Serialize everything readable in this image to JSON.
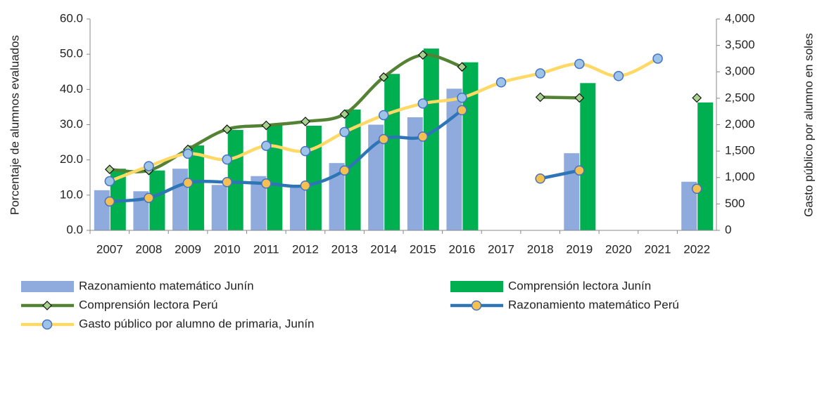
{
  "chart_data": {
    "type": "combo",
    "categories": [
      "2007",
      "2008",
      "2009",
      "2010",
      "2011",
      "2012",
      "2013",
      "2014",
      "2015",
      "2016",
      "2017",
      "2018",
      "2019",
      "2020",
      "2021",
      "2022"
    ],
    "ylabel": "Porcentaje de alumnos evaluados",
    "y2label": "Gasto público por alumno en soles",
    "ylim": [
      0,
      60
    ],
    "yticks": [
      {
        "value": 0,
        "label": "0.0"
      },
      {
        "value": 10,
        "label": "10.0"
      },
      {
        "value": 20,
        "label": "20.0"
      },
      {
        "value": 30,
        "label": "30.0"
      },
      {
        "value": 40,
        "label": "40.0"
      },
      {
        "value": 50,
        "label": "50.0"
      },
      {
        "value": 60,
        "label": "60.0"
      }
    ],
    "y2lim": [
      0,
      4000
    ],
    "y2ticks": [
      0,
      500,
      {
        "value": 1000,
        "label": "1,000"
      },
      {
        "value": 1500,
        "label": "1,500"
      },
      {
        "value": 2000,
        "label": "2,000"
      },
      {
        "value": 2500,
        "label": "2,500"
      },
      {
        "value": 3000,
        "label": "3,000"
      },
      {
        "value": 3500,
        "label": "3,500"
      },
      {
        "value": 4000,
        "label": "4,000"
      }
    ],
    "series": [
      {
        "name": "Razonamiento matemático Junín",
        "kind": "bar",
        "color": "#8faadc",
        "values": [
          11.4,
          11.1,
          17.5,
          12.9,
          15.4,
          12.8,
          19.1,
          30.0,
          32.1,
          40.2,
          null,
          null,
          21.9,
          null,
          null,
          13.8
        ]
      },
      {
        "name": "Comprensión lectora Junín",
        "kind": "bar",
        "color": "#00b050",
        "values": [
          17.5,
          17.0,
          24.1,
          28.5,
          29.8,
          29.7,
          34.3,
          44.4,
          51.6,
          47.7,
          null,
          null,
          41.8,
          null,
          null,
          36.3
        ]
      },
      {
        "name": "Comprensión lectora Perú",
        "kind": "line",
        "color": "#548235",
        "marker": "diamond",
        "marker_color": "#a9d18e",
        "values": [
          17.3,
          17.0,
          23.0,
          28.7,
          29.8,
          30.9,
          33.0,
          43.5,
          49.8,
          46.4,
          null,
          37.8,
          37.6,
          null,
          null,
          37.6
        ]
      },
      {
        "name": "Razonamiento matemático Perú",
        "kind": "line",
        "color": "#2e75b6",
        "marker": "circle",
        "marker_color": "#f4c150",
        "values": [
          8.2,
          9.2,
          13.5,
          13.7,
          13.3,
          12.7,
          17.0,
          25.9,
          26.6,
          34.1,
          null,
          14.7,
          17.0,
          null,
          null,
          11.8
        ]
      },
      {
        "name": "Gasto público por alumno de primaria, Junín",
        "kind": "line",
        "axis": "y2",
        "color": "#ffd966",
        "marker": "circle",
        "marker_color": "#9dc3e6",
        "values": [
          930,
          1215,
          1450,
          1340,
          1600,
          1500,
          1860,
          2180,
          2400,
          2510,
          2800,
          2970,
          3150,
          2920,
          3250,
          null
        ]
      }
    ]
  }
}
